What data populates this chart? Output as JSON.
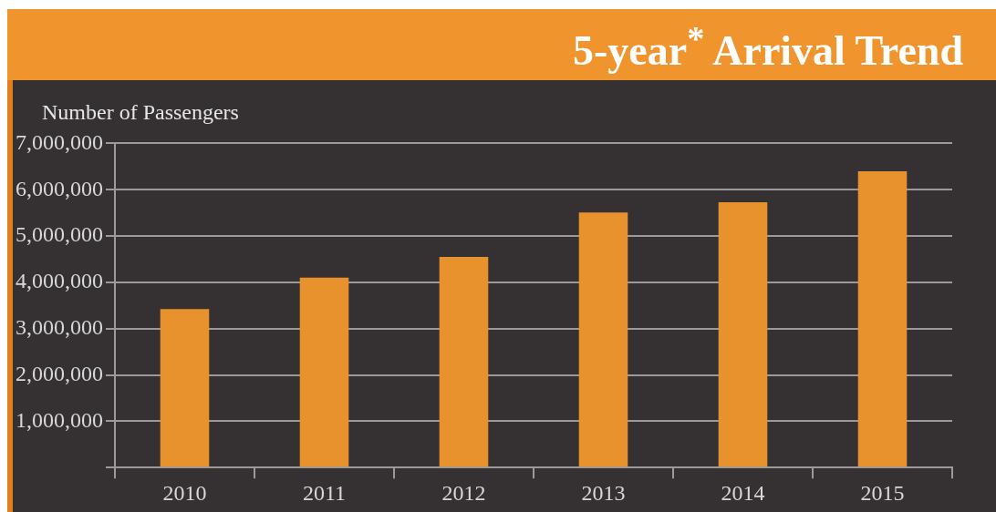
{
  "chart_data": {
    "type": "bar",
    "title": "5-year$^{*}$ Arrival Trend",
    "ylabel": "Number of Passengers",
    "categories": [
      "2010",
      "2011",
      "2012",
      "2013",
      "2014",
      "2015"
    ],
    "values": [
      3420000,
      4100000,
      4550000,
      5510000,
      5730000,
      6400000
    ],
    "color": "#e8922e",
    "ylim": [
      0,
      7000000
    ],
    "yticks": [
      {
        "value": 0,
        "label": null
      },
      {
        "value": 1000000,
        "label": "1,000,000"
      },
      {
        "value": 2000000,
        "label": "2,000,000"
      },
      {
        "value": 3000000,
        "label": "3,000,000"
      },
      {
        "value": 4000000,
        "label": "4,000,000"
      },
      {
        "value": 5000000,
        "label": "5,000,000"
      },
      {
        "value": 6000000,
        "label": "6,000,000"
      },
      {
        "value": 7000000,
        "label": "7,000,000"
      }
    ],
    "grid": "y",
    "legend": false
  }
}
